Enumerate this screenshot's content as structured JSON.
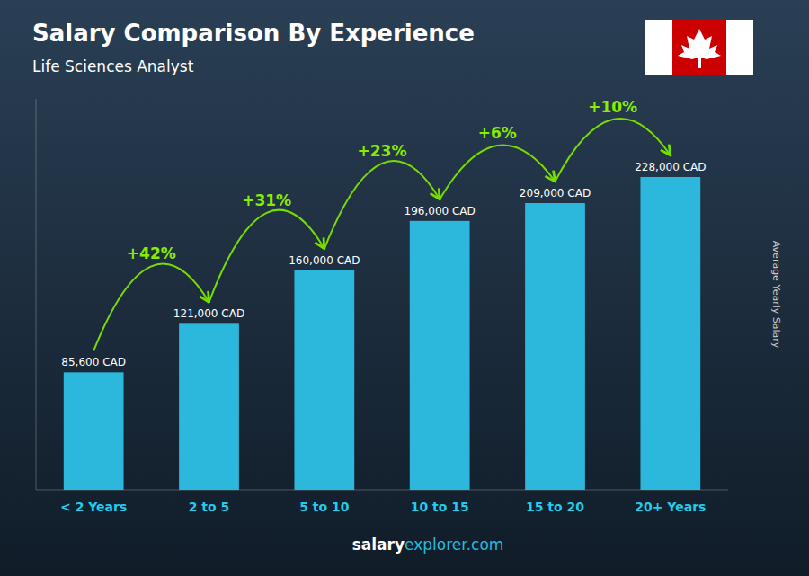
{
  "chart_data": {
    "type": "bar",
    "title": "Salary Comparison By Experience",
    "subtitle": "Life Sciences Analyst",
    "categories": [
      "< 2 Years",
      "2 to 5",
      "5 to 10",
      "10 to 15",
      "15 to 20",
      "20+ Years"
    ],
    "values": [
      85600,
      121000,
      160000,
      196000,
      209000,
      228000
    ],
    "value_labels": [
      "85,600 CAD",
      "121,000 CAD",
      "160,000 CAD",
      "196,000 CAD",
      "209,000 CAD",
      "228,000 CAD"
    ],
    "data_labels": true,
    "annotations": [
      "+42%",
      "+31%",
      "+23%",
      "+6%",
      "+10%"
    ],
    "ylabel": "Average Yearly Salary",
    "footer": [
      "salary",
      "explorer.com"
    ],
    "color": "#2cb8dc",
    "ylim": [
      0,
      285000
    ],
    "tick_labels": "x",
    "grid": false
  }
}
